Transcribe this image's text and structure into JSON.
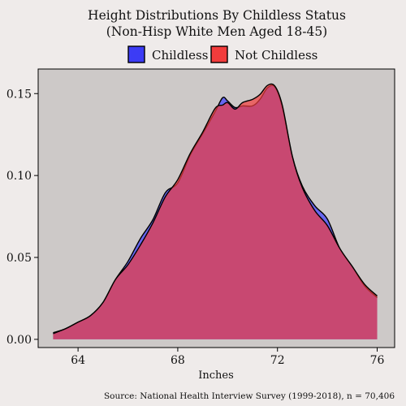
{
  "chart_data": {
    "type": "area",
    "title_lines": [
      "Height Distributions By Childless Status",
      "(Non-Hisp White Men Aged 18-45)"
    ],
    "xlabel": "Inches",
    "ylabel": "",
    "caption": "Source: National Health Interview Survey (1999-2018), n = 70,406",
    "xlim": [
      62.4,
      76.7
    ],
    "ylim": [
      -0.005,
      0.165
    ],
    "x_ticks": [
      64,
      68,
      72,
      76
    ],
    "x_tick_labels": [
      "64",
      "68",
      "72",
      "76"
    ],
    "y_ticks": [
      0.0,
      0.05,
      0.1,
      0.15
    ],
    "y_tick_labels": [
      "0.00",
      "0.05",
      "0.10",
      "0.15"
    ],
    "legend_position": "top-center",
    "grid": false,
    "panel_background": "#cdc9c8",
    "series": [
      {
        "name": "Childless",
        "fill_color": "#3c3cff",
        "legend_color": "#3c3cf5",
        "x": [
          63.0,
          63.5,
          64.0,
          64.5,
          65.0,
          65.5,
          66.0,
          66.5,
          67.0,
          67.5,
          68.0,
          68.5,
          69.0,
          69.5,
          69.8,
          70.0,
          70.3,
          70.6,
          71.0,
          71.3,
          71.6,
          71.9,
          72.2,
          72.6,
          73.0,
          73.5,
          74.0,
          74.5,
          75.0,
          75.5,
          76.0
        ],
        "y": [
          0.004,
          0.0065,
          0.0105,
          0.0145,
          0.0225,
          0.0365,
          0.0475,
          0.0615,
          0.073,
          0.0895,
          0.0955,
          0.1125,
          0.1255,
          0.139,
          0.1475,
          0.1455,
          0.1415,
          0.1425,
          0.1425,
          0.1465,
          0.1535,
          0.154,
          0.1415,
          0.1115,
          0.0935,
          0.0815,
          0.0735,
          0.0555,
          0.0445,
          0.0325,
          0.0255
        ]
      },
      {
        "name": "Not Childless",
        "fill_color": "#f23c3c",
        "legend_color": "#f23c3c",
        "x": [
          63.0,
          63.5,
          64.0,
          64.5,
          65.0,
          65.5,
          66.0,
          66.5,
          67.0,
          67.5,
          68.0,
          68.5,
          69.0,
          69.5,
          69.8,
          70.0,
          70.3,
          70.6,
          71.0,
          71.3,
          71.6,
          71.9,
          72.2,
          72.6,
          73.0,
          73.5,
          74.0,
          74.5,
          75.0,
          75.5,
          76.0
        ],
        "y": [
          0.0035,
          0.0065,
          0.0105,
          0.0145,
          0.0225,
          0.0365,
          0.0455,
          0.0575,
          0.071,
          0.087,
          0.0975,
          0.1135,
          0.1265,
          0.141,
          0.143,
          0.1445,
          0.1405,
          0.1445,
          0.1465,
          0.1495,
          0.155,
          0.1545,
          0.1425,
          0.1115,
          0.0925,
          0.0785,
          0.0695,
          0.0555,
          0.0445,
          0.0335,
          0.0265
        ]
      }
    ]
  }
}
